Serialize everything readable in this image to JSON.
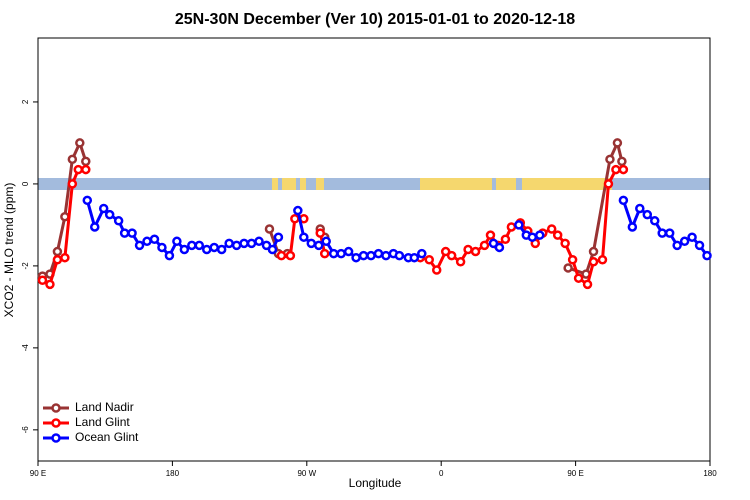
{
  "chart_data": {
    "type": "line",
    "title": "25N-30N December (Ver 10)   2015-01-01 to 2020-12-18",
    "xlabel": "Longitude",
    "ylabel": "XCO2 - MLO trend (ppm)",
    "xlim": [
      90,
      540
    ],
    "ylim": [
      -6.76,
      3.56
    ],
    "xticks": [
      {
        "value": 90,
        "label": "90 E"
      },
      180,
      {
        "value": 270,
        "label": "90 W"
      },
      {
        "value": 360,
        "label": "0"
      },
      {
        "value": 450,
        "label": "90 E"
      },
      {
        "value": 540,
        "label": "180"
      }
    ],
    "yticks": [
      -6,
      -4,
      -2,
      0,
      2
    ],
    "legend": "bottom-left",
    "series": [
      {
        "name": "Land Nadir",
        "color": "#993333",
        "x": [
          93,
          98,
          103,
          108,
          113,
          118,
          122,
          null,
          245,
          251,
          257,
          null,
          279,
          282,
          null,
          445,
          457,
          462,
          473,
          478,
          481
        ],
        "values": [
          -2.25,
          -2.2,
          -1.65,
          -0.8,
          0.6,
          1.0,
          0.55,
          null,
          -1.1,
          -1.7,
          -1.7,
          null,
          -1.1,
          -1.3,
          null,
          -2.05,
          -2.2,
          -1.65,
          0.6,
          1.0,
          0.55
        ]
      },
      {
        "name": "Land Glint",
        "color": "#ff0000",
        "x": [
          93,
          98,
          103,
          108,
          113,
          117,
          122,
          null,
          253,
          259,
          262,
          268,
          null,
          279,
          282,
          null,
          346,
          352,
          357,
          363,
          367,
          373,
          378,
          383,
          389,
          393,
          398,
          403,
          407,
          413,
          418,
          423,
          428,
          434,
          438,
          443,
          448,
          452,
          458,
          462,
          468,
          472,
          477,
          482
        ],
        "values": [
          -2.35,
          -2.45,
          -1.85,
          -1.8,
          0,
          0.35,
          0.35,
          null,
          -1.75,
          -1.75,
          -0.85,
          -0.85,
          null,
          -1.2,
          -1.7,
          null,
          -1.8,
          -1.85,
          -2.1,
          -1.65,
          -1.75,
          -1.9,
          -1.6,
          -1.65,
          -1.5,
          -1.25,
          -1.5,
          -1.35,
          -1.05,
          -0.95,
          -1.15,
          -1.45,
          -1.2,
          -1.1,
          -1.25,
          -1.45,
          -1.85,
          -2.3,
          -2.45,
          -1.9,
          -1.85,
          0,
          0.35,
          0.35
        ]
      },
      {
        "name": "Ocean Glint",
        "color": "#0000ff",
        "x": [
          123,
          128,
          134,
          138,
          144,
          148,
          153,
          158,
          163,
          168,
          173,
          178,
          183,
          188,
          193,
          198,
          203,
          208,
          213,
          218,
          223,
          228,
          233,
          238,
          243,
          247,
          251,
          null,
          264,
          268,
          273,
          278,
          283,
          288,
          293,
          298,
          303,
          308,
          313,
          318,
          323,
          328,
          332,
          338,
          342,
          347,
          null,
          395,
          399,
          null,
          412,
          417,
          421,
          426,
          null,
          482,
          488,
          493,
          498,
          503,
          508,
          513,
          518,
          523,
          528,
          533,
          538
        ],
        "values": [
          -0.4,
          -1.05,
          -0.6,
          -0.75,
          -0.9,
          -1.2,
          -1.2,
          -1.5,
          -1.4,
          -1.35,
          -1.55,
          -1.75,
          -1.4,
          -1.6,
          -1.5,
          -1.5,
          -1.6,
          -1.55,
          -1.6,
          -1.45,
          -1.5,
          -1.45,
          -1.45,
          -1.4,
          -1.5,
          -1.6,
          -1.3,
          null,
          -0.65,
          -1.3,
          -1.45,
          -1.5,
          -1.4,
          -1.7,
          -1.7,
          -1.65,
          -1.8,
          -1.75,
          -1.75,
          -1.7,
          -1.75,
          -1.7,
          -1.75,
          -1.8,
          -1.8,
          -1.7,
          null,
          -1.45,
          -1.55,
          null,
          -1.0,
          -1.25,
          -1.3,
          -1.25,
          null,
          -0.4,
          -1.05,
          -0.6,
          -0.75,
          -0.9,
          -1.2,
          -1.2,
          -1.5,
          -1.4,
          -1.3,
          -1.5,
          -1.75
        ]
      }
    ]
  }
}
